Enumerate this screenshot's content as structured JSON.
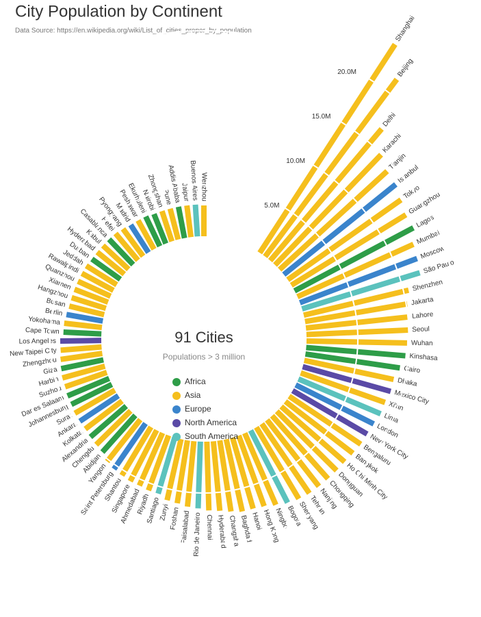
{
  "chart_data": {
    "type": "radial-bar",
    "title": "City Population by Continent",
    "subtitle": "Data Source: https://en.wikipedia.org/wiki/List_of_cities_proper_by_population",
    "center_title": "91 Cities",
    "center_subtitle": "Populations > 3 million",
    "legend": [
      {
        "name": "Africa",
        "color": "#2e9d48"
      },
      {
        "name": "Asia",
        "color": "#f5bf1d"
      },
      {
        "name": "Europe",
        "color": "#3a84cc"
      },
      {
        "name": "North America",
        "color": "#5a4aa6"
      },
      {
        "name": "South America",
        "color": "#5bc2bd"
      }
    ],
    "categories": [
      "Shanghai",
      "Beijing",
      "Delhi",
      "Karachi",
      "Tianjin",
      "Istanbul",
      "Tokyo",
      "Guangzhou",
      "Lagos",
      "Mumbai",
      "Moscow",
      "São Paulo",
      "Shenzhen",
      "Jakarta",
      "Lahore",
      "Seoul",
      "Wuhan",
      "Kinshasa",
      "Cairo",
      "Dhaka",
      "Mexico City",
      "Xi'an",
      "Lima",
      "London",
      "New York City",
      "Bengaluru",
      "Bangkok",
      "Ho Chi Minh City",
      "Dongguan",
      "Chongqing",
      "Nanjing",
      "Tehran",
      "Shenyang",
      "Bogota",
      "Ningbo",
      "Hong Kong",
      "Hanoi",
      "Baghdad",
      "Changsha",
      "Hyderabad",
      "Chennai",
      "Rio de Janeiro",
      "Faisalabad",
      "Foshan",
      "Zunyi",
      "Santiago",
      "Riyadh",
      "Ahmedabad",
      "Singapore",
      "Shantou",
      "Saint Petersburg",
      "Yangon",
      "Abidjan",
      "Chengdu",
      "Alexandria",
      "Kolkata",
      "Ankara",
      "Surat",
      "Johannesburg",
      "Dar es Salaam",
      "Suzhou",
      "Harbin",
      "Giza",
      "Zhengzhou",
      "New Taipei City",
      "Los Angeles",
      "Cape Town",
      "Yokohama",
      "Berlin",
      "Busan",
      "Hangzhou",
      "Xiamen",
      "Quanzhou",
      "Rawalpindi",
      "Jeddah",
      "Durban",
      "Hyderabad",
      "Kabul",
      "Casablanca",
      "Hefei",
      "Pyongyang",
      "Madrid",
      "Peshawar",
      "Ekurhuleni",
      "Nairobi",
      "Zhongshan",
      "Pune",
      "Addis Ababa",
      "Jaipur",
      "Buenos Aires",
      "Wenzhou"
    ],
    "continent": [
      "Asia",
      "Asia",
      "Asia",
      "Asia",
      "Asia",
      "Europe",
      "Asia",
      "Asia",
      "Africa",
      "Asia",
      "Europe",
      "South America",
      "Asia",
      "Asia",
      "Asia",
      "Asia",
      "Asia",
      "Africa",
      "Africa",
      "Asia",
      "North America",
      "Asia",
      "South America",
      "Europe",
      "North America",
      "Asia",
      "Asia",
      "Asia",
      "Asia",
      "Asia",
      "Asia",
      "Asia",
      "Asia",
      "South America",
      "Asia",
      "Asia",
      "Asia",
      "Asia",
      "Asia",
      "Asia",
      "Asia",
      "South America",
      "Asia",
      "Asia",
      "Asia",
      "South America",
      "Asia",
      "Asia",
      "Asia",
      "Asia",
      "Europe",
      "Asia",
      "Africa",
      "Asia",
      "Africa",
      "Asia",
      "Europe",
      "Asia",
      "Africa",
      "Africa",
      "Asia",
      "Asia",
      "Africa",
      "Asia",
      "Asia",
      "North America",
      "Africa",
      "Asia",
      "Europe",
      "Asia",
      "Asia",
      "Asia",
      "Asia",
      "Asia",
      "Asia",
      "Africa",
      "Asia",
      "Asia",
      "Africa",
      "Asia",
      "Asia",
      "Europe",
      "Asia",
      "Africa",
      "Africa",
      "Asia",
      "Asia",
      "Africa",
      "Asia",
      "South America",
      "Asia"
    ],
    "values": [
      24.2,
      21.5,
      16.8,
      14.9,
      14.2,
      14.0,
      13.5,
      13.1,
      13.1,
      12.4,
      12.2,
      12.0,
      10.5,
      10.1,
      10.0,
      9.9,
      9.8,
      9.7,
      9.3,
      8.9,
      8.9,
      8.7,
      8.7,
      8.5,
      8.4,
      8.4,
      8.3,
      8.2,
      8.2,
      8.2,
      8.2,
      8.2,
      8.1,
      7.9,
      7.6,
      7.3,
      7.2,
      7.2,
      7.0,
      6.8,
      6.7,
      6.5,
      6.4,
      6.2,
      6.1,
      5.7,
      5.7,
      5.6,
      5.6,
      5.5,
      5.4,
      5.2,
      4.8,
      4.7,
      4.6,
      4.5,
      4.5,
      4.5,
      4.4,
      4.4,
      4.3,
      4.3,
      4.2,
      4.1,
      4.0,
      4.0,
      3.7,
      3.7,
      3.6,
      3.5,
      3.5,
      3.5,
      3.5,
      3.5,
      3.5,
      3.4,
      3.4,
      3.4,
      3.4,
      3.4,
      3.3,
      3.2,
      3.2,
      3.2,
      3.1,
      3.1,
      3.1,
      3.1,
      3.1,
      3.1,
      3.0
    ],
    "ylim": [
      0,
      25
    ],
    "yticks": [
      {
        "value": 5,
        "label": "5.0M"
      },
      {
        "value": 10,
        "label": "10.0M"
      },
      {
        "value": 15,
        "label": "15.0M"
      },
      {
        "value": 20,
        "label": "20.0M"
      }
    ]
  }
}
